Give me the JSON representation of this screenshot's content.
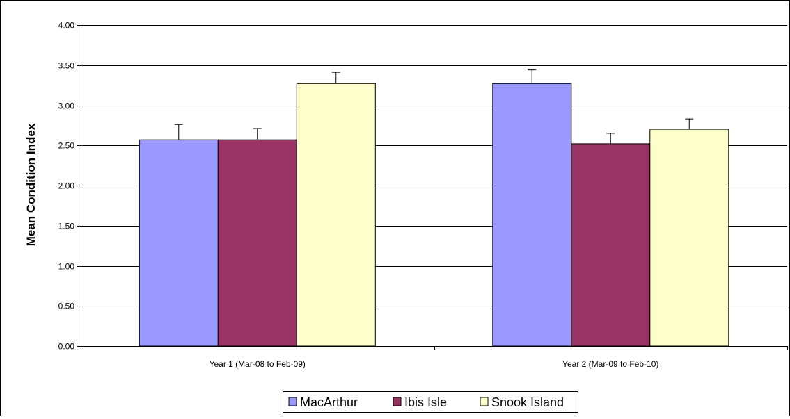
{
  "chart_data": {
    "type": "bar",
    "title": "",
    "xlabel": "",
    "ylabel": "Mean Condition Index",
    "ylim": [
      0,
      4
    ],
    "y_ticks": [
      "0.00",
      "0.50",
      "1.00",
      "1.50",
      "2.00",
      "2.50",
      "3.00",
      "3.50",
      "4.00"
    ],
    "categories": [
      "Year 1 (Mar-08 to Feb-09)",
      "Year 2 (Mar-09 to Feb-10)"
    ],
    "series": [
      {
        "name": "MacArthur",
        "values": [
          2.57,
          3.27
        ],
        "error": [
          0.19,
          0.17
        ],
        "color": "#9999ff"
      },
      {
        "name": "Ibis Isle",
        "values": [
          2.57,
          2.52
        ],
        "error": [
          0.14,
          0.13
        ],
        "color": "#993366"
      },
      {
        "name": "Snook Island",
        "values": [
          3.27,
          2.7
        ],
        "error": [
          0.14,
          0.13
        ],
        "color": "#ffffcc"
      }
    ],
    "grid": true,
    "legend_position": "bottom"
  }
}
